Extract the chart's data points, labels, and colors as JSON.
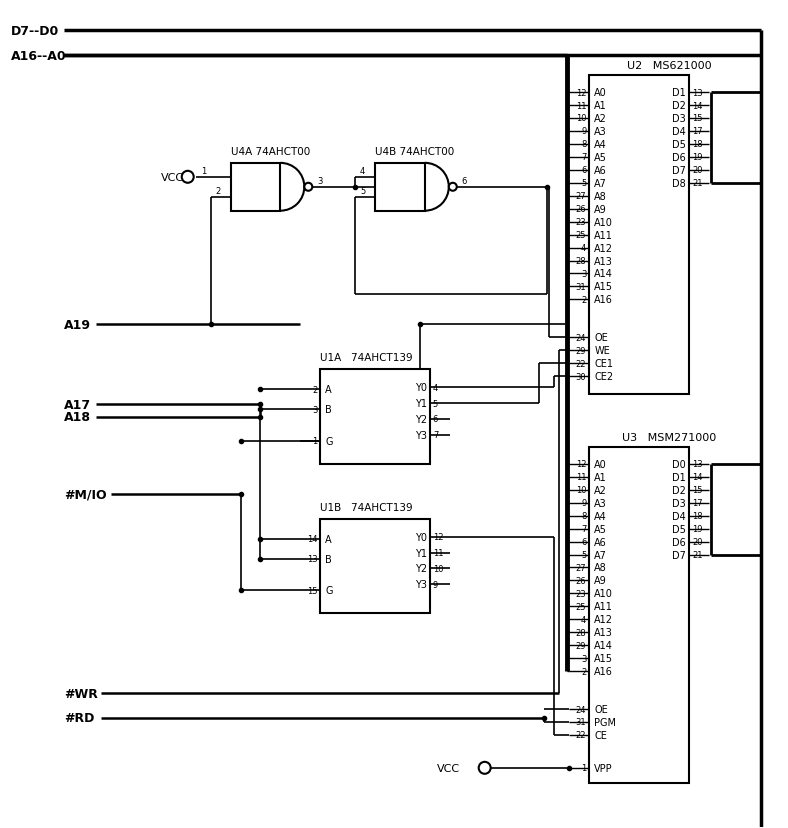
{
  "bg_color": "#ffffff",
  "fig_width": 7.88,
  "fig_height": 8.29,
  "dpi": 100,
  "D7D0": "D7--D0",
  "A16A0": "A16--A0",
  "VCC": "VCC",
  "A19": "A19",
  "A17": "A17",
  "A18": "A18",
  "MIO": "#M/IO",
  "WR": "#WR",
  "RD": "#RD",
  "u2_label": "U2   MS621000",
  "u3_label": "U3   MSM271000",
  "u4a_label": "U4A 74AHCT00",
  "u4b_label": "U4B 74AHCT00",
  "u1a_label": "U1A   74AHCT139",
  "u1b_label": "U1B   74AHCT139",
  "u2_addr_pins": [
    [
      12,
      "A0"
    ],
    [
      11,
      "A1"
    ],
    [
      10,
      "A2"
    ],
    [
      9,
      "A3"
    ],
    [
      8,
      "A4"
    ],
    [
      7,
      "A5"
    ],
    [
      6,
      "A6"
    ],
    [
      5,
      "A7"
    ],
    [
      27,
      "A8"
    ],
    [
      26,
      "A9"
    ],
    [
      23,
      "A10"
    ],
    [
      25,
      "A11"
    ],
    [
      4,
      "A12"
    ],
    [
      28,
      "A13"
    ],
    [
      3,
      "A14"
    ],
    [
      31,
      "A15"
    ],
    [
      2,
      "A16"
    ]
  ],
  "u2_ctrl_pins": [
    [
      24,
      "OE",
      true
    ],
    [
      29,
      "WE",
      true
    ],
    [
      22,
      "CE1",
      true
    ],
    [
      30,
      "CE2",
      false
    ]
  ],
  "u2_data_pins": [
    [
      13,
      "D1"
    ],
    [
      14,
      "D2"
    ],
    [
      15,
      "D3"
    ],
    [
      17,
      "D4"
    ],
    [
      18,
      "D5"
    ],
    [
      19,
      "D6"
    ],
    [
      20,
      "D7"
    ],
    [
      21,
      "D8"
    ]
  ],
  "u3_addr_pins": [
    [
      12,
      "A0"
    ],
    [
      11,
      "A1"
    ],
    [
      10,
      "A2"
    ],
    [
      9,
      "A3"
    ],
    [
      8,
      "A4"
    ],
    [
      7,
      "A5"
    ],
    [
      6,
      "A6"
    ],
    [
      5,
      "A7"
    ],
    [
      27,
      "A8"
    ],
    [
      26,
      "A9"
    ],
    [
      23,
      "A10"
    ],
    [
      25,
      "A11"
    ],
    [
      4,
      "A12"
    ],
    [
      28,
      "A13"
    ],
    [
      29,
      "A14"
    ],
    [
      3,
      "A15"
    ],
    [
      2,
      "A16"
    ]
  ],
  "u3_ctrl_pins": [
    [
      24,
      "OE",
      true
    ],
    [
      31,
      "PGM",
      true
    ],
    [
      22,
      "CE",
      true
    ]
  ],
  "u3_data_pins": [
    [
      13,
      "D0"
    ],
    [
      14,
      "D1"
    ],
    [
      15,
      "D2"
    ],
    [
      17,
      "D3"
    ],
    [
      18,
      "D4"
    ],
    [
      19,
      "D5"
    ],
    [
      20,
      "D6"
    ],
    [
      21,
      "D7"
    ]
  ],
  "u1a_in_pins": [
    [
      2,
      "A"
    ],
    [
      3,
      "B"
    ],
    [
      1,
      "G",
      true
    ]
  ],
  "u1a_out_pins": [
    [
      4,
      "Y0"
    ],
    [
      5,
      "Y1"
    ],
    [
      6,
      "Y2"
    ],
    [
      7,
      "Y3"
    ]
  ],
  "u1b_in_pins": [
    [
      14,
      "A"
    ],
    [
      13,
      "B"
    ],
    [
      15,
      "G",
      true
    ]
  ],
  "u1b_out_pins": [
    [
      12,
      "Y0"
    ],
    [
      11,
      "Y1"
    ],
    [
      10,
      "Y2"
    ],
    [
      9,
      "Y3"
    ]
  ]
}
